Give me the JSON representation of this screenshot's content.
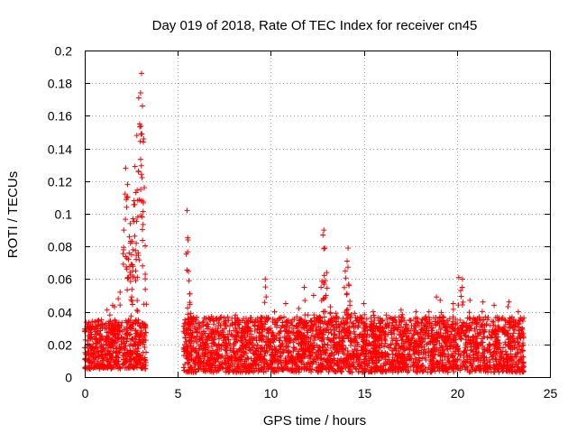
{
  "chart_data": {
    "type": "scatter",
    "title": "Day 019 of 2018, Rate Of TEC Index for receiver cn45",
    "xlabel": "GPS time / hours",
    "ylabel": "ROTI / TECUs",
    "xlim": [
      0,
      25
    ],
    "ylim": [
      0,
      0.2
    ],
    "xticks": [
      0,
      5,
      10,
      15,
      20,
      25
    ],
    "xtick_labels": [
      "0",
      "5",
      "10",
      "15",
      "20",
      "25"
    ],
    "yticks": [
      0,
      0.02,
      0.04,
      0.06,
      0.08,
      0.1,
      0.12,
      0.14,
      0.16,
      0.18,
      0.2
    ],
    "ytick_labels": [
      "0",
      "0.02",
      "0.04",
      "0.06",
      "0.08",
      "0.1",
      "0.12",
      "0.14",
      "0.16",
      "0.18",
      "0.2"
    ],
    "grid": true,
    "marker": "+",
    "marker_color": "#ff0000",
    "bands": [
      {
        "x_start": 0.0,
        "x_end": 3.3,
        "y_low": 0.005,
        "y_high": 0.035
      },
      {
        "x_start": 5.3,
        "x_end": 23.6,
        "y_low": 0.003,
        "y_high": 0.037
      }
    ],
    "series": [
      {
        "name": "ROTI",
        "x": [
          0.3,
          0.6,
          0.9,
          1.2,
          1.35,
          1.5,
          1.6,
          1.8,
          1.9,
          2.1,
          2.2,
          2.25,
          2.3,
          2.35,
          2.4,
          2.45,
          2.5,
          2.55,
          2.6,
          2.65,
          2.7,
          2.75,
          2.8,
          2.85,
          2.9,
          2.95,
          3.0,
          3.05,
          3.1,
          3.15,
          3.2,
          3.25,
          5.5,
          5.55,
          5.6,
          5.65,
          5.7,
          6.5,
          7.2,
          8.1,
          9.5,
          9.7,
          10.2,
          10.8,
          11.5,
          11.8,
          12.0,
          12.3,
          12.7,
          12.8,
          12.85,
          12.9,
          13.0,
          13.2,
          13.5,
          14.0,
          14.1,
          14.15,
          14.2,
          14.25,
          14.5,
          15.0,
          15.5,
          16.2,
          17.0,
          17.8,
          18.5,
          18.9,
          19.1,
          19.8,
          20.1,
          20.2,
          20.3,
          20.7,
          21.4,
          22.0,
          22.8,
          23.3
        ],
        "y": [
          0.024,
          0.031,
          0.035,
          0.041,
          0.038,
          0.044,
          0.043,
          0.048,
          0.052,
          0.09,
          0.128,
          0.104,
          0.118,
          0.072,
          0.086,
          0.094,
          0.069,
          0.083,
          0.078,
          0.108,
          0.129,
          0.113,
          0.148,
          0.098,
          0.171,
          0.155,
          0.174,
          0.186,
          0.166,
          0.144,
          0.116,
          0.063,
          0.102,
          0.084,
          0.059,
          0.051,
          0.039,
          0.036,
          0.033,
          0.038,
          0.033,
          0.06,
          0.04,
          0.045,
          0.042,
          0.055,
          0.038,
          0.05,
          0.055,
          0.087,
          0.09,
          0.079,
          0.064,
          0.043,
          0.039,
          0.065,
          0.071,
          0.079,
          0.056,
          0.044,
          0.039,
          0.045,
          0.04,
          0.038,
          0.041,
          0.04,
          0.04,
          0.049,
          0.047,
          0.045,
          0.061,
          0.053,
          0.06,
          0.047,
          0.046,
          0.044,
          0.046,
          0.04
        ]
      }
    ]
  }
}
